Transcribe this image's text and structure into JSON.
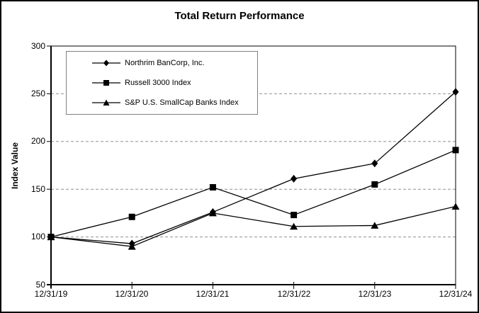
{
  "chart_data": {
    "type": "line",
    "title": "Total Return Performance",
    "ylabel": "Index Value",
    "xlabel": "",
    "categories": [
      "12/31/19",
      "12/31/20",
      "12/31/21",
      "12/31/22",
      "12/31/23",
      "12/31/24"
    ],
    "series": [
      {
        "name": "Northrim BanCorp, Inc.",
        "marker": "diamond",
        "values": [
          100,
          93,
          126,
          161,
          177,
          252
        ]
      },
      {
        "name": "Russell 3000 Index",
        "marker": "square",
        "values": [
          100,
          121,
          152,
          123,
          155,
          191
        ]
      },
      {
        "name": "S&P U.S. SmallCap Banks Index",
        "marker": "triangle",
        "values": [
          100,
          90,
          125,
          111,
          112,
          132
        ]
      }
    ],
    "ylim": [
      50,
      300
    ],
    "yticks": [
      50,
      100,
      150,
      200,
      250,
      300
    ],
    "grid": "horizontal-dashed",
    "legend_position": "top-left-inside",
    "colors": {
      "line": "#000000",
      "marker": "#000000",
      "grid": "#909090",
      "axis": "#000000",
      "background": "#ffffff",
      "outer_border": "#000000",
      "legend_border": "#808080"
    }
  }
}
